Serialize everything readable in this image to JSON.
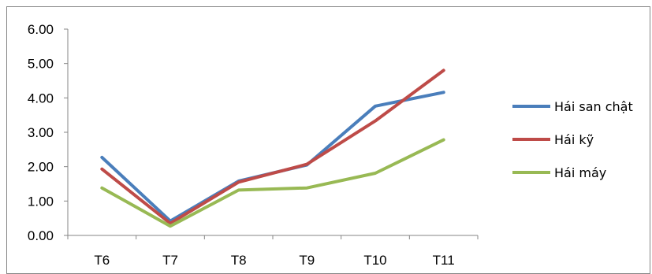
{
  "chart_data": {
    "type": "line",
    "categories": [
      "T6",
      "T7",
      "T8",
      "T9",
      "T10",
      "T11"
    ],
    "series": [
      {
        "name": "Hái san chật",
        "color": "#4a7ebb",
        "values": [
          2.27,
          0.42,
          1.58,
          2.05,
          3.76,
          4.16
        ]
      },
      {
        "name": "Hái kỹ",
        "color": "#be4b48",
        "values": [
          1.93,
          0.35,
          1.55,
          2.07,
          3.33,
          4.8
        ]
      },
      {
        "name": "Hái máy",
        "color": "#98b954",
        "values": [
          1.38,
          0.27,
          1.32,
          1.38,
          1.81,
          2.78
        ]
      }
    ],
    "y_ticks": [
      "0.00",
      "1.00",
      "2.00",
      "3.00",
      "4.00",
      "5.00",
      "6.00"
    ],
    "ylim": [
      0,
      6
    ],
    "title": "",
    "xlabel": "",
    "ylabel": "",
    "legend_position": "right",
    "grid": false
  }
}
